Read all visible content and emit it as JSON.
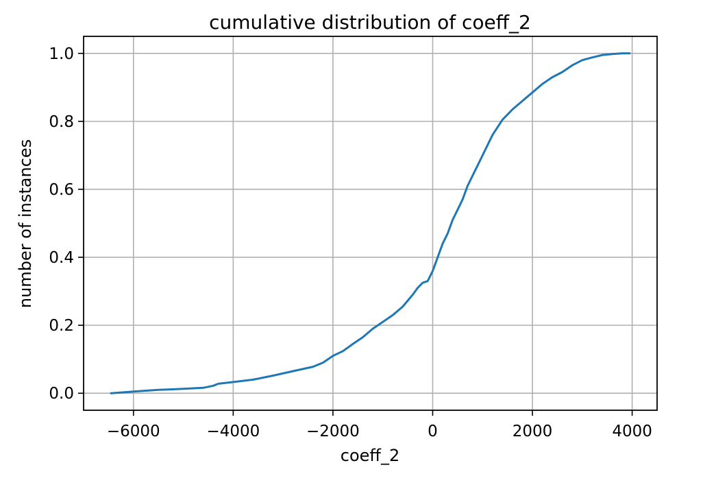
{
  "chart_data": {
    "type": "line",
    "title": "cumulative distribution of coeff_2",
    "xlabel": "coeff_2",
    "ylabel": "number of instances",
    "xlim": [
      -7000,
      4500
    ],
    "ylim": [
      -0.05,
      1.05
    ],
    "xticks": [
      -6000,
      -4000,
      -2000,
      0,
      2000,
      4000
    ],
    "xtick_labels": [
      "−6000",
      "−4000",
      "−2000",
      "0",
      "2000",
      "4000"
    ],
    "yticks": [
      0.0,
      0.2,
      0.4,
      0.6,
      0.8,
      1.0
    ],
    "ytick_labels": [
      "0.0",
      "0.2",
      "0.4",
      "0.6",
      "0.8",
      "1.0"
    ],
    "grid": true,
    "colors": {
      "line": "#1f77b4"
    },
    "series": [
      {
        "x": [
          -6450,
          -6000,
          -5500,
          -5000,
          -4600,
          -4400,
          -4300,
          -4000,
          -3600,
          -3200,
          -2800,
          -2400,
          -2200,
          -2000,
          -1800,
          -1600,
          -1400,
          -1200,
          -1000,
          -800,
          -600,
          -400,
          -300,
          -200,
          -100,
          0,
          100,
          200,
          300,
          400,
          500,
          600,
          700,
          800,
          900,
          1000,
          1200,
          1400,
          1600,
          1800,
          2000,
          2200,
          2400,
          2600,
          2800,
          3000,
          3200,
          3400,
          3600,
          3800,
          3950
        ],
        "y": [
          0.0,
          0.005,
          0.01,
          0.013,
          0.016,
          0.022,
          0.028,
          0.033,
          0.04,
          0.052,
          0.065,
          0.078,
          0.09,
          0.11,
          0.124,
          0.145,
          0.165,
          0.19,
          0.21,
          0.23,
          0.255,
          0.29,
          0.31,
          0.325,
          0.33,
          0.36,
          0.4,
          0.44,
          0.47,
          0.51,
          0.54,
          0.57,
          0.61,
          0.64,
          0.67,
          0.7,
          0.76,
          0.805,
          0.835,
          0.86,
          0.885,
          0.91,
          0.93,
          0.945,
          0.965,
          0.98,
          0.988,
          0.995,
          0.998,
          1.0,
          1.0
        ]
      }
    ]
  }
}
